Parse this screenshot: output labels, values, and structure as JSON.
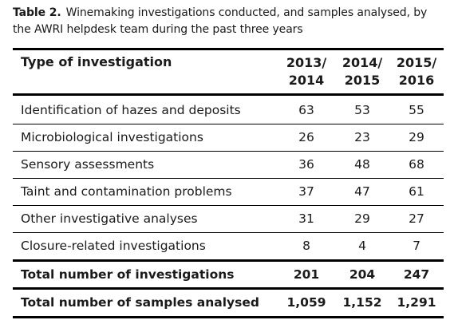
{
  "caption": {
    "label": "Table 2.",
    "text": "Winemaking investigations conducted, and samples analysed, by the AWRI helpdesk team during the past three years"
  },
  "table": {
    "header": {
      "type_label": "Type of investigation",
      "years": [
        {
          "line1": "2013/",
          "line2": "2014"
        },
        {
          "line1": "2014/",
          "line2": "2015"
        },
        {
          "line1": "2015/",
          "line2": "2016"
        }
      ]
    },
    "rows": [
      {
        "name": "Identification of hazes and deposits",
        "values": [
          "63",
          "53",
          "55"
        ]
      },
      {
        "name": "Microbiological investigations",
        "values": [
          "26",
          "23",
          "29"
        ]
      },
      {
        "name": "Sensory assessments",
        "values": [
          "36",
          "48",
          "68"
        ]
      },
      {
        "name": "Taint and contamination problems",
        "values": [
          "37",
          "47",
          "61"
        ]
      },
      {
        "name": "Other investigative analyses",
        "values": [
          "31",
          "29",
          "27"
        ]
      },
      {
        "name": "Closure-related investigations",
        "values": [
          "8",
          "4",
          "7"
        ]
      }
    ],
    "totals": [
      {
        "name": "Total number of investigations",
        "values": [
          "201",
          "204",
          "247"
        ]
      },
      {
        "name": "Total number of samples analysed",
        "values": [
          "1,059",
          "1,152",
          "1,291"
        ]
      }
    ]
  }
}
